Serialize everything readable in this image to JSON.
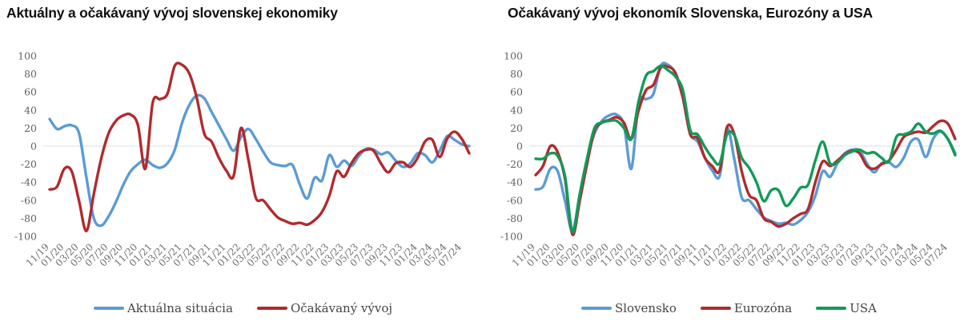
{
  "chart_data": [
    {
      "type": "line",
      "title": "Aktuálny a očakávaný vývoj slovenskej ekonomiky",
      "ylim": [
        -100,
        100
      ],
      "y_ticks": [
        100,
        80,
        60,
        40,
        20,
        0,
        -20,
        -40,
        -60,
        -80,
        -100
      ],
      "grid": "zero-line-only",
      "legend_position": "bottom",
      "x_tick_labels": [
        "11/19",
        "01/20",
        "03/20",
        "05/20",
        "07/20",
        "09/20",
        "11/20",
        "01/21",
        "03/21",
        "05/21",
        "07/21",
        "09/21",
        "11/21",
        "01/22",
        "03/22",
        "05/22",
        "07/22",
        "09/22",
        "11/22",
        "01/23",
        "03/23",
        "05/23",
        "07/23",
        "09/23",
        "11/23",
        "01/24",
        "03/24",
        "05/24",
        "07/24"
      ],
      "months": [
        "11/19",
        "12/19",
        "01/20",
        "02/20",
        "03/20",
        "04/20",
        "05/20",
        "06/20",
        "07/20",
        "08/20",
        "09/20",
        "10/20",
        "11/20",
        "12/20",
        "01/21",
        "02/21",
        "03/21",
        "04/21",
        "05/21",
        "06/21",
        "07/21",
        "08/21",
        "09/21",
        "10/21",
        "11/21",
        "12/21",
        "01/22",
        "02/22",
        "03/22",
        "04/22",
        "05/22",
        "06/22",
        "07/22",
        "08/22",
        "09/22",
        "10/22",
        "11/22",
        "12/22",
        "01/23",
        "02/23",
        "03/23",
        "04/23",
        "05/23",
        "06/23",
        "07/23",
        "08/23",
        "09/23",
        "10/23",
        "11/23",
        "12/23",
        "01/24",
        "02/24",
        "03/24",
        "04/24",
        "05/24",
        "06/24",
        "07/24",
        "08/24"
      ],
      "series": [
        {
          "name": "Aktuálna situácia",
          "color": "#5B9BD5",
          "values": [
            30,
            19,
            22,
            23,
            14,
            -35,
            -80,
            -88,
            -78,
            -62,
            -43,
            -28,
            -20,
            -15,
            -21,
            -24,
            -19,
            -4,
            26,
            46,
            56,
            53,
            38,
            23,
            8,
            -5,
            10,
            19,
            8,
            -6,
            -18,
            -21,
            -22,
            -21,
            -43,
            -58,
            -35,
            -38,
            -10,
            -23,
            -16,
            -22,
            -11,
            -3,
            -4,
            -9,
            -7,
            -16,
            -23,
            -19,
            -8,
            -10,
            -18,
            -5,
            11,
            7,
            2,
            0
          ]
        },
        {
          "name": "Očakávaný vývoj",
          "color": "#B02B2E",
          "values": [
            -48,
            -45,
            -25,
            -28,
            -61,
            -94,
            -53,
            -14,
            14,
            28,
            34,
            35,
            23,
            -25,
            48,
            52,
            58,
            89,
            90,
            80,
            53,
            14,
            5,
            -13,
            -27,
            -33,
            20,
            -15,
            -57,
            -60,
            -70,
            -79,
            -83,
            -86,
            -85,
            -87,
            -82,
            -73,
            -55,
            -28,
            -34,
            -19,
            -8,
            -4,
            -5,
            -19,
            -29,
            -19,
            -18,
            -23,
            -13,
            5,
            7,
            -12,
            8,
            16,
            8,
            -8
          ]
        }
      ]
    },
    {
      "type": "line",
      "title": "Očakávaný vývoj ekonomík Slovenska, Eurozóny a USA",
      "ylim": [
        -100,
        100
      ],
      "y_ticks": [
        100,
        80,
        60,
        40,
        20,
        0,
        -20,
        -40,
        -60,
        -80,
        -100
      ],
      "grid": "zero-line-only",
      "legend_position": "bottom",
      "x_tick_labels": [
        "11/19",
        "01/20",
        "03/20",
        "05/20",
        "07/20",
        "09/20",
        "11/20",
        "01/21",
        "03/21",
        "05/21",
        "07/21",
        "09/21",
        "11/21",
        "01/22",
        "03/22",
        "05/22",
        "07/22",
        "09/22",
        "11/22",
        "01/23",
        "03/23",
        "05/23",
        "07/23",
        "09/23",
        "11/23",
        "01/24",
        "03/24",
        "05/24",
        "07/24"
      ],
      "months": [
        "11/19",
        "12/19",
        "01/20",
        "02/20",
        "03/20",
        "04/20",
        "05/20",
        "06/20",
        "07/20",
        "08/20",
        "09/20",
        "10/20",
        "11/20",
        "12/20",
        "01/21",
        "02/21",
        "03/21",
        "04/21",
        "05/21",
        "06/21",
        "07/21",
        "08/21",
        "09/21",
        "10/21",
        "11/21",
        "12/21",
        "01/22",
        "02/22",
        "03/22",
        "04/22",
        "05/22",
        "06/22",
        "07/22",
        "08/22",
        "09/22",
        "10/22",
        "11/22",
        "12/22",
        "01/23",
        "02/23",
        "03/23",
        "04/23",
        "05/23",
        "06/23",
        "07/23",
        "08/23",
        "09/23",
        "10/23",
        "11/23",
        "12/23",
        "01/24",
        "02/24",
        "03/24",
        "04/24",
        "05/24",
        "06/24",
        "07/24",
        "08/24"
      ],
      "series": [
        {
          "name": "Slovensko",
          "color": "#5B9BD5",
          "values": [
            -48,
            -45,
            -25,
            -28,
            -61,
            -94,
            -53,
            -14,
            14,
            28,
            34,
            35,
            23,
            -25,
            48,
            52,
            58,
            89,
            90,
            80,
            53,
            14,
            5,
            -13,
            -27,
            -33,
            20,
            -15,
            -57,
            -60,
            -70,
            -79,
            -83,
            -86,
            -85,
            -87,
            -82,
            -73,
            -55,
            -28,
            -34,
            -19,
            -8,
            -4,
            -5,
            -19,
            -29,
            -19,
            -18,
            -23,
            -13,
            5,
            7,
            -12,
            8,
            16,
            8,
            -8
          ]
        },
        {
          "name": "Eurozóna",
          "color": "#B02B2E",
          "values": [
            -32,
            -22,
            0,
            -7,
            -37,
            -98,
            -60,
            -19,
            17,
            26,
            29,
            32,
            26,
            8,
            40,
            62,
            68,
            87,
            88,
            81,
            54,
            13,
            9,
            -13,
            -22,
            -27,
            21,
            13,
            -28,
            -54,
            -60,
            -80,
            -84,
            -89,
            -86,
            -80,
            -75,
            -70,
            -40,
            -17,
            -22,
            -16,
            -9,
            -5,
            -8,
            -22,
            -25,
            -20,
            -16,
            -4,
            10,
            14,
            16,
            15,
            22,
            28,
            25,
            8
          ]
        },
        {
          "name": "USA",
          "color": "#119B57",
          "values": [
            -14,
            -14,
            -8,
            -11,
            -34,
            -95,
            -53,
            -13,
            20,
            26,
            28,
            28,
            20,
            8,
            50,
            78,
            83,
            89,
            84,
            77,
            62,
            18,
            13,
            -1,
            -13,
            -19,
            13,
            12,
            -13,
            -24,
            -40,
            -61,
            -49,
            -49,
            -66,
            -58,
            -46,
            -43,
            -16,
            5,
            -19,
            -18,
            -10,
            -6,
            -4,
            -8,
            -7,
            -13,
            -17,
            10,
            13,
            16,
            25,
            16,
            14,
            17,
            8,
            -10
          ]
        }
      ]
    }
  ]
}
